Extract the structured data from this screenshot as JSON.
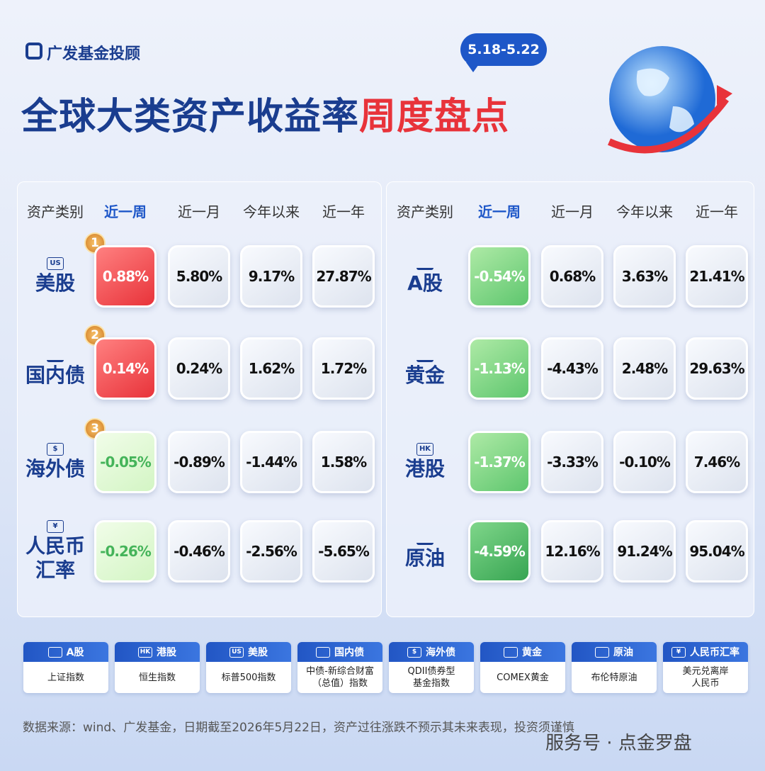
{
  "header": {
    "brand": "广发基金投顾",
    "date_range": "5.18-5.22",
    "title": "全球大类资产收益率",
    "title_highlight": "周度盘点"
  },
  "tables": [
    {
      "columns": [
        "资产类别",
        "近一周",
        "近一月",
        "今年以来",
        "近一年"
      ],
      "rows": [
        {
          "rank": "1",
          "icon": "US",
          "name": [
            "美股"
          ],
          "cells": [
            "0.88%",
            "5.80%",
            "9.17%",
            "27.87%"
          ]
        },
        {
          "rank": "2",
          "name": [
            "国内债"
          ],
          "cells": [
            "0.14%",
            "0.24%",
            "1.62%",
            "1.72%"
          ]
        },
        {
          "rank": "3",
          "icon": "$",
          "name": [
            "海外债"
          ],
          "cells": [
            "-0.05%",
            "-0.89%",
            "-1.44%",
            "1.58%"
          ]
        },
        {
          "icon": "¥",
          "name": [
            "人民币",
            "汇率"
          ],
          "cells": [
            "-0.26%",
            "-0.46%",
            "-2.56%",
            "-5.65%"
          ]
        }
      ]
    },
    {
      "columns": [
        "资产类别",
        "近一周",
        "近一月",
        "今年以来",
        "近一年"
      ],
      "rows": [
        {
          "name": [
            "A股"
          ],
          "cells": [
            "-0.54%",
            "0.68%",
            "3.63%",
            "21.41%"
          ]
        },
        {
          "name": [
            "黄金"
          ],
          "cells": [
            "-1.13%",
            "-4.43%",
            "2.48%",
            "29.63%"
          ]
        },
        {
          "icon": "HK",
          "name": [
            "港股"
          ],
          "cells": [
            "-1.37%",
            "-3.33%",
            "-0.10%",
            "7.46%"
          ]
        },
        {
          "name": [
            "原油"
          ],
          "cells": [
            "-4.59%",
            "12.16%",
            "91.24%",
            "95.04%"
          ]
        }
      ]
    }
  ],
  "legend": [
    {
      "name": "A股",
      "desc": [
        "上证指数"
      ]
    },
    {
      "icon": "HK",
      "name": "港股",
      "desc": [
        "恒生指数"
      ]
    },
    {
      "icon": "US",
      "name": "美股",
      "desc": [
        "标普500指数"
      ]
    },
    {
      "name": "国内债",
      "desc": [
        "中债-新综合财富",
        "（总值）指数"
      ]
    },
    {
      "icon": "$",
      "name": "海外债",
      "desc": [
        "QDII债券型",
        "基金指数"
      ]
    },
    {
      "name": "黄金",
      "desc": [
        "COMEX黄金"
      ]
    },
    {
      "name": "原油",
      "desc": [
        "布伦特原油"
      ]
    },
    {
      "icon": "¥",
      "name": "人民币汇率",
      "desc": [
        "美元兑离岸",
        "人民币"
      ]
    }
  ],
  "footer": {
    "source": "数据来源：wind、广发基金，日期截至2026年5月22日，资产过往涨跌不预示其未来表现，投资须谨慎",
    "watermark": "服务号 · 点金罗盘"
  }
}
